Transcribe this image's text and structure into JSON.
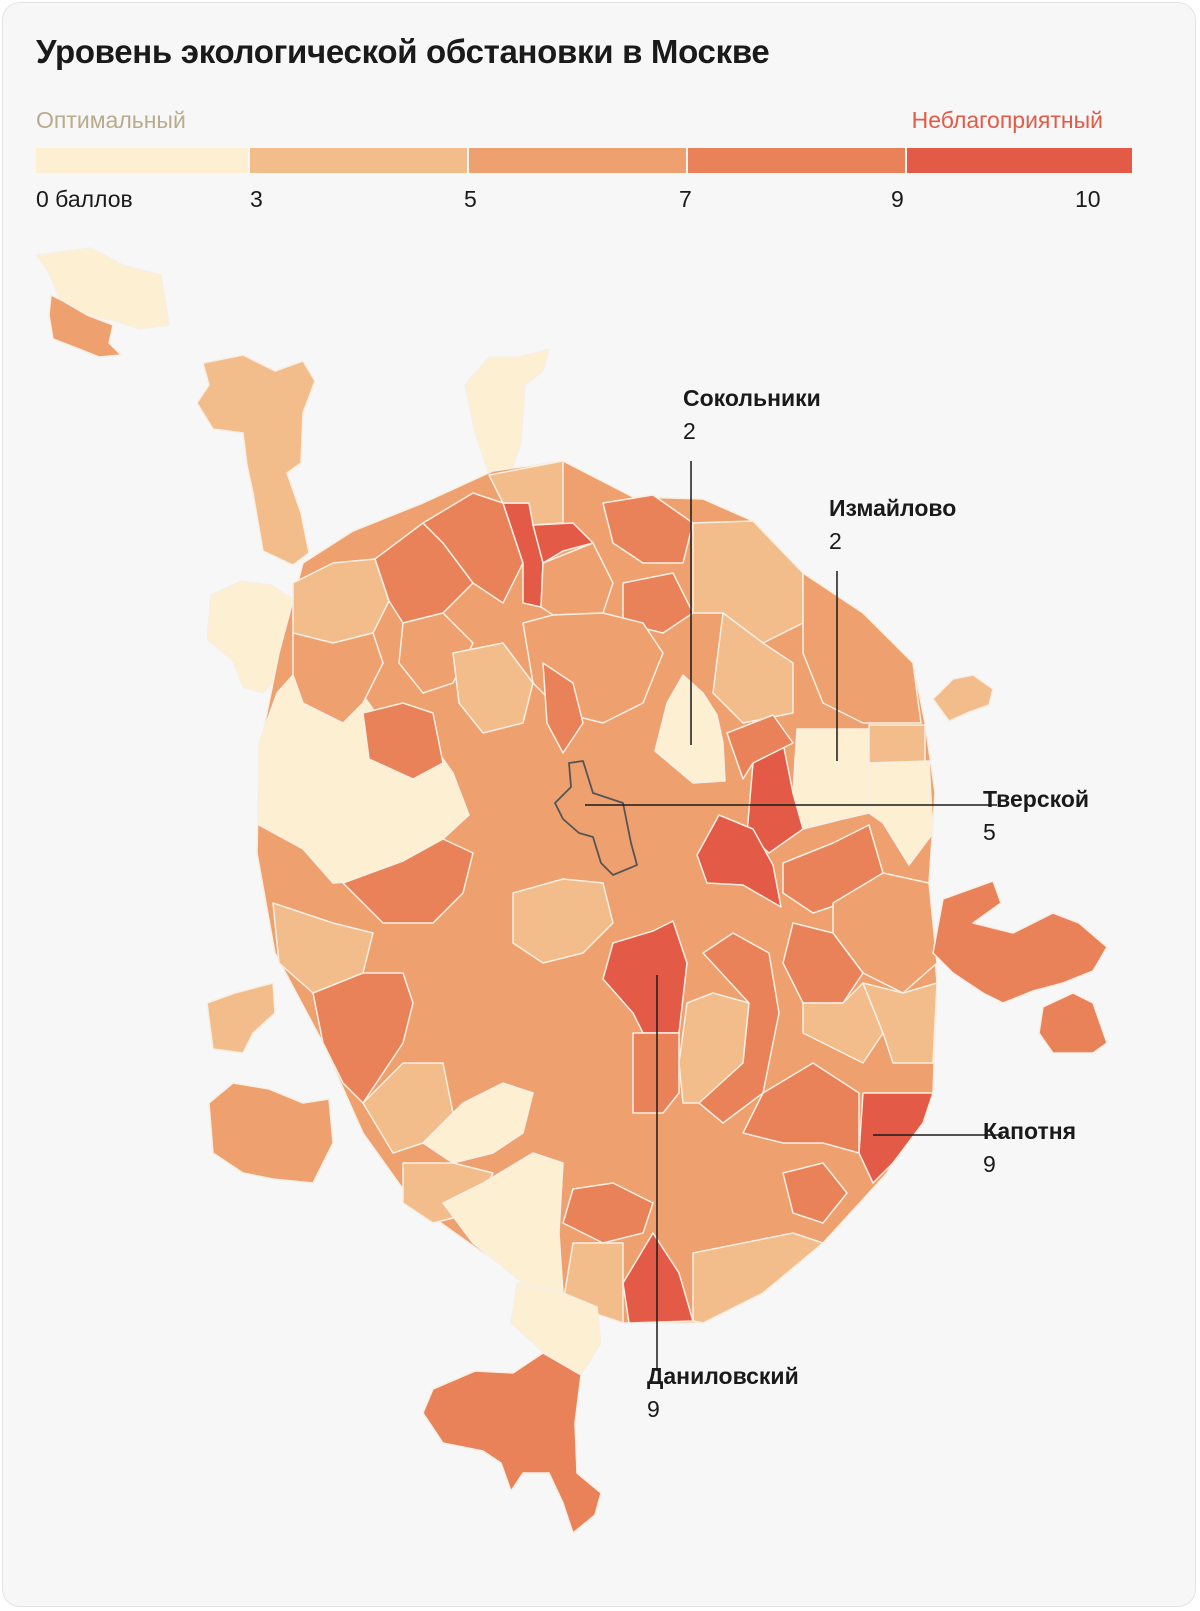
{
  "title": "Уровень экологической обстановки в Москве",
  "legend": {
    "low_label": "Оптимальный",
    "high_label": "Неблагоприятный",
    "ticks": [
      "0 баллов",
      "3",
      "5",
      "7",
      "9",
      "10"
    ],
    "colors": [
      "#fdefd2",
      "#f3bd8b",
      "#eea06e",
      "#e98258",
      "#e35a47"
    ]
  },
  "chart_data": {
    "type": "choropleth",
    "scale_min": 0,
    "scale_max": 10,
    "bins": [
      0,
      3,
      5,
      7,
      9,
      10
    ],
    "highlighted_districts": [
      {
        "name": "Сокольники",
        "score": "2"
      },
      {
        "name": "Измайлово",
        "score": "2"
      },
      {
        "name": "Тверской",
        "score": "5"
      },
      {
        "name": "Капотня",
        "score": "9"
      },
      {
        "name": "Даниловский",
        "score": "9"
      }
    ]
  }
}
